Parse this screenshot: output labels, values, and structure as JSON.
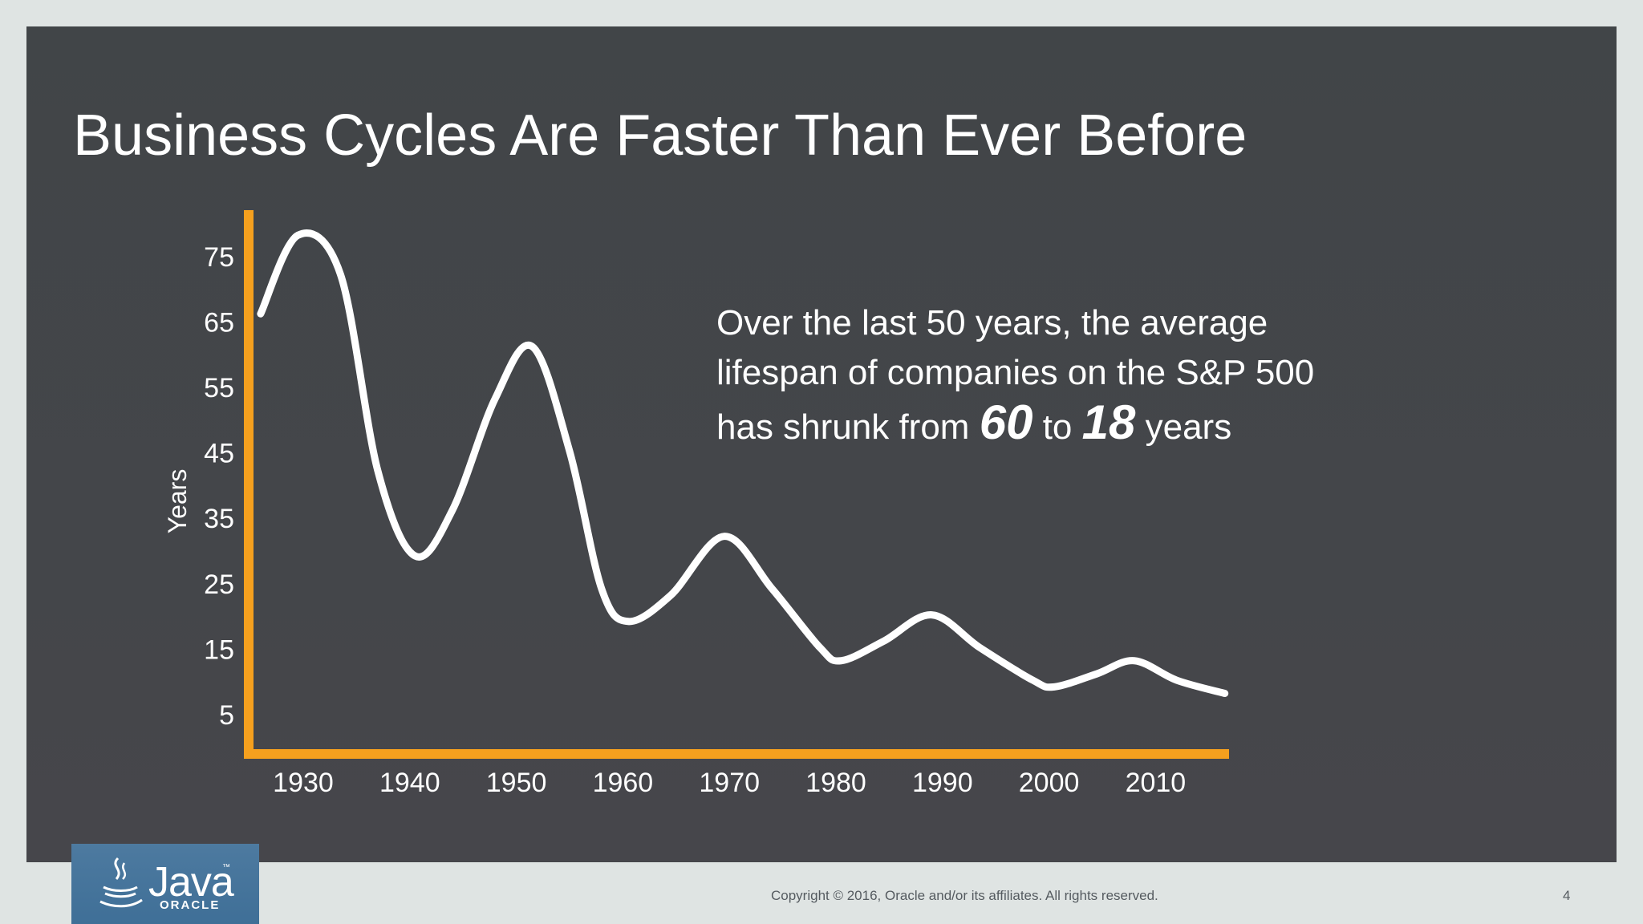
{
  "slide": {
    "title": "Business Cycles Are Faster Than Ever Before",
    "callout": {
      "line1": "Over the last 50 years, the average",
      "line2": "lifespan of companies on the S&P 500",
      "line3_prefix": "has shrunk from",
      "value_from": "60",
      "middle": "to",
      "value_to": "18",
      "suffix": "years"
    }
  },
  "footer": {
    "copyright": "Copyright © 2016, Oracle and/or its affiliates. All rights reserved.",
    "page_number": "4",
    "logo_text": "Java",
    "logo_tm": "™",
    "logo_sub": "ORACLE"
  },
  "colors": {
    "axis": "#f5a01e",
    "line": "#ffffff",
    "background": "#434649"
  },
  "chart_data": {
    "type": "line",
    "title": "",
    "xlabel": "",
    "ylabel": "Years",
    "x_ticks": [
      "1930",
      "1940",
      "1950",
      "1960",
      "1970",
      "1980",
      "1990",
      "2000",
      "2010"
    ],
    "y_ticks": [
      "5",
      "15",
      "25",
      "35",
      "45",
      "55",
      "65",
      "75"
    ],
    "xlim": [
      1925,
      2017
    ],
    "ylim": [
      -2,
      82
    ],
    "series": [
      {
        "name": "Average S&P 500 company lifespan",
        "x": [
          1926,
          1929.5,
          1933.5,
          1937,
          1940.5,
          1944,
          1948,
          1951.5,
          1955,
          1958,
          1960.5,
          1964.5,
          1969.5,
          1974,
          1978.5,
          1980.5,
          1984.5,
          1989,
          1993.5,
          1998.5,
          2000.5,
          2004.5,
          2008,
          2012,
          2016.5
        ],
        "y": [
          66,
          78,
          72,
          42,
          29,
          36,
          53,
          61,
          45,
          24,
          19,
          23,
          32,
          24,
          15,
          13,
          16,
          20,
          15,
          10,
          9,
          11,
          13,
          10,
          8
        ]
      }
    ]
  }
}
